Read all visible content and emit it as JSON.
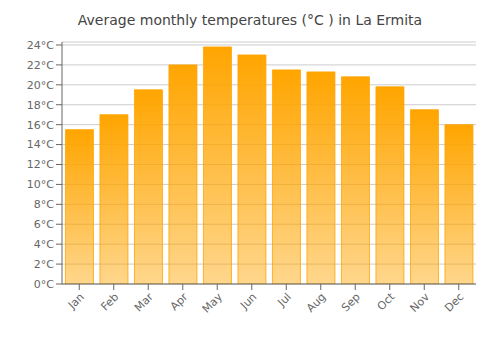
{
  "chart_data": {
    "type": "bar",
    "title": "Average monthly temperatures (°C ) in La Ermita",
    "categories": [
      "Jan",
      "Feb",
      "Mar",
      "Apr",
      "May",
      "Jun",
      "Jul",
      "Aug",
      "Sep",
      "Oct",
      "Nov",
      "Dec"
    ],
    "values": [
      15.5,
      17.0,
      19.5,
      22.0,
      23.8,
      23.0,
      21.5,
      21.3,
      20.8,
      19.8,
      17.5,
      16.0
    ],
    "color": "#FFA500",
    "ylim": [
      0,
      24.3
    ],
    "yticks": [
      {
        "value": 0,
        "label": "0°C"
      },
      {
        "value": 2,
        "label": "2°C"
      },
      {
        "value": 4,
        "label": "4°C"
      },
      {
        "value": 6,
        "label": "6°C"
      },
      {
        "value": 8,
        "label": "8°C"
      },
      {
        "value": 10,
        "label": "10°C"
      },
      {
        "value": 12,
        "label": "12°C"
      },
      {
        "value": 14,
        "label": "14°C"
      },
      {
        "value": 16,
        "label": "16°C"
      },
      {
        "value": 18,
        "label": "18°C"
      },
      {
        "value": 20,
        "label": "20°C"
      },
      {
        "value": 22,
        "label": "22°C"
      },
      {
        "value": 24,
        "label": "24°C"
      }
    ],
    "grid": true
  }
}
